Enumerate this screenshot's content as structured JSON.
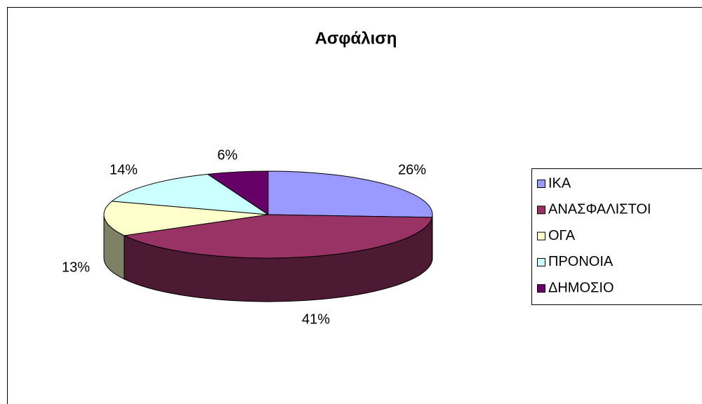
{
  "chart_data": {
    "type": "pie",
    "title": "Ασφάλιση",
    "categories": [
      "ΙΚΑ",
      "ΑΝΑΣΦΑΛΙΣΤΟΙ",
      "ΟΓΑ",
      "ΠΡΟΝΟΙΑ",
      "ΔΗΜΟΣΙΟ"
    ],
    "values": [
      26,
      41,
      13,
      14,
      6
    ],
    "value_labels": [
      "26%",
      "41%",
      "13%",
      "14%",
      "6%"
    ],
    "colors": [
      "#9999ff",
      "#993366",
      "#ffffcc",
      "#ccffff",
      "#660066"
    ],
    "legend": "right"
  }
}
